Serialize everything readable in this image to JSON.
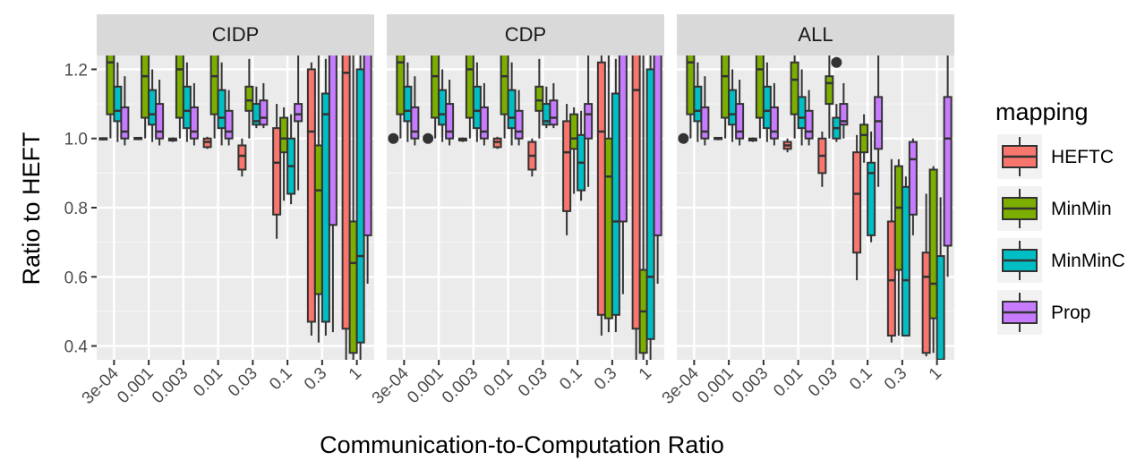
{
  "chart_data": {
    "type": "boxplot",
    "xlabel": "Communication-to-Computation Ratio",
    "ylabel": "Ratio to HEFT",
    "ylim": [
      0.36,
      1.24
    ],
    "yticks": [
      0.4,
      0.6,
      0.8,
      1.0,
      1.2
    ],
    "ytick_labels": [
      "0.4",
      "0.6",
      "0.8",
      "1.0",
      "1.2"
    ],
    "categories": [
      "3e-04",
      "0.001",
      "0.003",
      "0.01",
      "0.03",
      "0.1",
      "0.3",
      "1"
    ],
    "legend": {
      "title": "mapping",
      "position": "right",
      "entries": [
        {
          "name": "HEFTC",
          "color": "#F8766D"
        },
        {
          "name": "MinMin",
          "color": "#7CAE00"
        },
        {
          "name": "MinMinC",
          "color": "#00BFC4"
        },
        {
          "name": "Prop",
          "color": "#C77CFF"
        }
      ]
    },
    "grid": true,
    "facets": [
      {
        "name": "CIDP",
        "boxes": [
          [
            [
              0.995,
              0.997,
              0.999,
              1.001,
              1.003
            ],
            [
              1.0,
              1.07,
              1.22,
              1.3,
              1.3
            ],
            [
              0.99,
              1.05,
              1.08,
              1.15,
              1.22
            ],
            [
              0.98,
              1.0,
              1.02,
              1.09,
              1.18
            ]
          ],
          [
            [
              0.995,
              0.998,
              1.0,
              1.002,
              1.004
            ],
            [
              1.0,
              1.06,
              1.18,
              1.3,
              1.3
            ],
            [
              0.99,
              1.04,
              1.07,
              1.14,
              1.2
            ],
            [
              0.98,
              1.0,
              1.02,
              1.1,
              1.17
            ]
          ],
          [
            [
              0.99,
              0.994,
              0.997,
              1.0,
              1.003
            ],
            [
              1.0,
              1.06,
              1.2,
              1.3,
              1.3
            ],
            [
              0.99,
              1.03,
              1.08,
              1.15,
              1.22
            ],
            [
              0.98,
              1.0,
              1.02,
              1.09,
              1.16
            ]
          ],
          [
            [
              0.97,
              0.975,
              0.99,
              1.0,
              1.005
            ],
            [
              1.0,
              1.07,
              1.18,
              1.25,
              1.3
            ],
            [
              0.98,
              1.03,
              1.06,
              1.14,
              1.22
            ],
            [
              0.98,
              1.0,
              1.02,
              1.08,
              1.14
            ]
          ],
          [
            [
              0.89,
              0.91,
              0.95,
              0.98,
              1.0
            ],
            [
              1.0,
              1.08,
              1.11,
              1.15,
              1.23
            ],
            [
              1.03,
              1.04,
              1.05,
              1.1,
              1.15
            ],
            [
              1.03,
              1.04,
              1.06,
              1.11,
              1.16
            ]
          ],
          [
            [
              0.71,
              0.78,
              0.93,
              1.03,
              1.1
            ],
            [
              0.82,
              0.96,
              1.0,
              1.06,
              1.09
            ],
            [
              0.81,
              0.84,
              0.92,
              1.0,
              1.07
            ],
            [
              0.85,
              1.05,
              1.07,
              1.1,
              1.25
            ]
          ],
          [
            [
              0.43,
              0.47,
              1.02,
              1.2,
              1.22
            ],
            [
              0.41,
              0.55,
              0.85,
              0.98,
              1.24
            ],
            [
              0.43,
              0.47,
              1.07,
              1.13,
              1.23
            ],
            [
              0.44,
              0.75,
              1.3,
              1.3,
              1.3
            ]
          ],
          [
            [
              0.36,
              0.45,
              1.19,
              1.3,
              1.3
            ],
            [
              0.36,
              0.38,
              0.64,
              0.76,
              1.3
            ],
            [
              0.35,
              0.41,
              0.66,
              1.2,
              1.3
            ],
            [
              0.58,
              0.72,
              1.3,
              1.3,
              1.3
            ]
          ]
        ],
        "outliers": []
      },
      {
        "name": "CDP",
        "boxes": [
          [
            [
              0.995,
              0.997,
              1.0,
              1.002,
              1.003
            ],
            [
              1.0,
              1.07,
              1.22,
              1.3,
              1.3
            ],
            [
              0.99,
              1.05,
              1.08,
              1.15,
              1.22
            ],
            [
              0.98,
              1.0,
              1.02,
              1.09,
              1.18
            ]
          ],
          [
            [
              0.995,
              0.998,
              1.0,
              1.002,
              1.004
            ],
            [
              1.0,
              1.06,
              1.18,
              1.3,
              1.3
            ],
            [
              0.99,
              1.04,
              1.07,
              1.14,
              1.2
            ],
            [
              0.98,
              1.0,
              1.02,
              1.1,
              1.17
            ]
          ],
          [
            [
              0.99,
              0.994,
              0.997,
              1.0,
              1.003
            ],
            [
              1.0,
              1.06,
              1.2,
              1.3,
              1.3
            ],
            [
              0.99,
              1.03,
              1.08,
              1.15,
              1.22
            ],
            [
              0.98,
              1.0,
              1.02,
              1.09,
              1.16
            ]
          ],
          [
            [
              0.97,
              0.975,
              0.99,
              1.0,
              1.005
            ],
            [
              1.0,
              1.07,
              1.18,
              1.25,
              1.3
            ],
            [
              0.98,
              1.03,
              1.06,
              1.14,
              1.22
            ],
            [
              0.98,
              1.0,
              1.02,
              1.08,
              1.14
            ]
          ],
          [
            [
              0.89,
              0.91,
              0.95,
              0.99,
              1.0
            ],
            [
              1.0,
              1.08,
              1.11,
              1.15,
              1.23
            ],
            [
              1.03,
              1.04,
              1.05,
              1.1,
              1.15
            ],
            [
              1.03,
              1.04,
              1.06,
              1.11,
              1.16
            ]
          ],
          [
            [
              0.72,
              0.79,
              0.96,
              1.05,
              1.1
            ],
            [
              0.84,
              0.97,
              1.0,
              1.07,
              1.09
            ],
            [
              0.82,
              0.85,
              0.93,
              1.01,
              1.08
            ],
            [
              0.86,
              1.0,
              1.07,
              1.1,
              1.25
            ]
          ],
          [
            [
              0.43,
              0.49,
              1.02,
              1.22,
              1.24
            ],
            [
              0.44,
              0.48,
              0.89,
              1.0,
              1.24
            ],
            [
              0.44,
              0.49,
              0.76,
              1.13,
              1.23
            ],
            [
              0.55,
              0.76,
              1.3,
              1.3,
              1.3
            ]
          ],
          [
            [
              0.36,
              0.45,
              1.14,
              1.3,
              1.3
            ],
            [
              0.36,
              0.38,
              0.5,
              0.62,
              1.3
            ],
            [
              0.35,
              0.42,
              0.6,
              1.2,
              1.3
            ],
            [
              0.58,
              0.72,
              1.3,
              1.3,
              1.3
            ]
          ]
        ],
        "outliers": [
          {
            "category": 0,
            "group": 0,
            "value": 1.0
          },
          {
            "category": 1,
            "group": 0,
            "value": 1.0
          }
        ]
      },
      {
        "name": "ALL",
        "boxes": [
          [
            [
              0.995,
              0.997,
              1.0,
              1.002,
              1.003
            ],
            [
              1.0,
              1.07,
              1.22,
              1.3,
              1.3
            ],
            [
              0.99,
              1.05,
              1.08,
              1.15,
              1.22
            ],
            [
              0.98,
              1.0,
              1.02,
              1.09,
              1.18
            ]
          ],
          [
            [
              0.995,
              0.998,
              1.0,
              1.002,
              1.004
            ],
            [
              1.0,
              1.06,
              1.18,
              1.3,
              1.3
            ],
            [
              0.99,
              1.04,
              1.07,
              1.14,
              1.2
            ],
            [
              0.98,
              1.0,
              1.02,
              1.1,
              1.17
            ]
          ],
          [
            [
              0.99,
              0.994,
              0.997,
              1.0,
              1.003
            ],
            [
              1.0,
              1.06,
              1.2,
              1.3,
              1.3
            ],
            [
              0.99,
              1.03,
              1.08,
              1.15,
              1.22
            ],
            [
              0.98,
              1.0,
              1.02,
              1.09,
              1.16
            ]
          ],
          [
            [
              0.96,
              0.97,
              0.98,
              0.99,
              1.0
            ],
            [
              1.0,
              1.07,
              1.17,
              1.22,
              1.3
            ],
            [
              0.98,
              1.03,
              1.06,
              1.12,
              1.2
            ],
            [
              0.98,
              1.0,
              1.02,
              1.08,
              1.14
            ]
          ],
          [
            [
              0.86,
              0.9,
              0.95,
              1.0,
              1.02
            ],
            [
              1.0,
              1.1,
              1.16,
              1.18,
              1.24
            ],
            [
              0.99,
              1.0,
              1.03,
              1.06,
              1.1
            ],
            [
              1.0,
              1.04,
              1.05,
              1.1,
              1.16
            ]
          ],
          [
            [
              0.59,
              0.67,
              0.84,
              0.96,
              1.01
            ],
            [
              0.93,
              0.96,
              1.01,
              1.04,
              1.07
            ],
            [
              0.7,
              0.72,
              0.9,
              0.93,
              1.02
            ],
            [
              0.86,
              0.97,
              1.05,
              1.12,
              1.25
            ]
          ],
          [
            [
              0.41,
              0.43,
              0.59,
              0.76,
              0.94
            ],
            [
              0.43,
              0.62,
              0.8,
              0.92,
              0.94
            ],
            [
              0.43,
              0.43,
              0.59,
              0.86,
              0.89
            ],
            [
              0.72,
              0.78,
              0.94,
              0.99,
              1.0
            ]
          ],
          [
            [
              0.37,
              0.38,
              0.6,
              0.67,
              0.84
            ],
            [
              0.38,
              0.48,
              0.58,
              0.91,
              0.92
            ],
            [
              0.36,
              0.36,
              0.36,
              0.66,
              0.83
            ],
            [
              0.6,
              0.69,
              1.0,
              1.12,
              1.3
            ]
          ]
        ],
        "outliers": [
          {
            "category": 0,
            "group": 0,
            "value": 1.0
          },
          {
            "category": 4,
            "group": 2,
            "value": 1.22
          }
        ]
      }
    ]
  }
}
